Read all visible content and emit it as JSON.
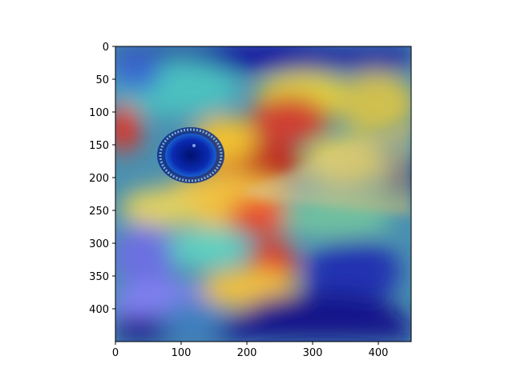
{
  "figure": {
    "image": "bird eye close-up with jet-colormap attention heatmap overlay",
    "x_ticks": [
      "0",
      "100",
      "200",
      "300",
      "400"
    ],
    "y_ticks": [
      "0",
      "50",
      "100",
      "150",
      "200",
      "250",
      "300",
      "350",
      "400"
    ],
    "x_tick_values": [
      0,
      100,
      200,
      300,
      400
    ],
    "y_tick_values": [
      0,
      50,
      100,
      150,
      200,
      250,
      300,
      350,
      400
    ],
    "xlim": [
      0,
      450
    ],
    "ylim": [
      450,
      0
    ],
    "heatmap_colormap": "jet",
    "hot_regions": [
      "above beak near eye",
      "cheek below beak",
      "upper-left edge"
    ],
    "cold_regions": [
      "eye",
      "bottom band",
      "top edge"
    ]
  }
}
